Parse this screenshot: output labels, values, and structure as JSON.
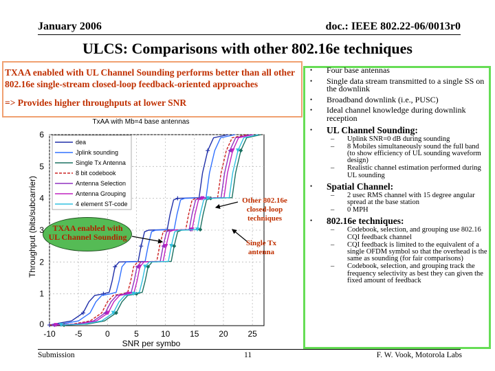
{
  "header": {
    "date": "January 2006",
    "doc": "doc.: IEEE 802.22-06/0013r0"
  },
  "title": "ULCS: Comparisons with other 802.16e techniques",
  "summary": {
    "line1": "TXAA enabled with UL Channel Sounding performs better than all other 802.16e single-stream closed-loop feedback-oriented approaches",
    "line2": "=> Provides higher throughputs at lower SNR"
  },
  "bullets": [
    {
      "text": "Four base antennas"
    },
    {
      "text": "Single data stream transmitted to a single SS on the downlink"
    },
    {
      "text": "Broadband downlink (i.e., PUSC)"
    },
    {
      "text": "Ideal channel knowledge during downlink reception"
    },
    {
      "text": "UL Channel Sounding:",
      "subs": [
        "Uplink SNR=0 dB during sounding",
        "8 Mobiles simultaneously sound the full band (to show efficiency of UL sounding waveform design)",
        "Realistic channel estimation performed during UL sounding"
      ]
    },
    {
      "text": "Spatial Channel:",
      "subs": [
        "2 usec RMS channel with 15 degree angular spread at the base station",
        "0 MPH"
      ]
    },
    {
      "text": "802.16e techniques:",
      "subs": [
        "Codebook, selection, and grouping use 802.16 CQI feedback channel",
        "CQI feedback is limited to the equivalent of a single OFDM symbol so that the overhead is the same as sounding (for fair comparisons)",
        "Codebook, selection, and grouping track the frequency selectivity as best they can given the fixed amount of feedback"
      ]
    }
  ],
  "annotations": {
    "ellipse": "TXAA enabled with UL Channel Sounding",
    "other": "Other 802.16e closed-loop techniques",
    "single": "Single Tx antenna"
  },
  "footer": {
    "left": "Submission",
    "page": "11",
    "right": "F. W. Vook, Motorola Labs"
  },
  "colors": {
    "title_accent": "#c03000",
    "box_border": "#66dd55",
    "ellipse_fill": "#55bb55"
  },
  "chart_data": {
    "type": "line",
    "title": "TxAA with Mb=4 base antennas",
    "xlabel": "SNR per symbo",
    "ylabel": "Throughput (bits/subcarrier)",
    "xlim": [
      -10,
      27
    ],
    "ylim": [
      0,
      6
    ],
    "xticks": [
      -10,
      -5,
      0,
      5,
      10,
      15,
      20,
      25
    ],
    "yticks": [
      1,
      2,
      3,
      4,
      5,
      6
    ],
    "legend": [
      "dea",
      "Jplink sounding",
      "Single Tx Antenna",
      "8 bit codebook",
      "Antenna Selection",
      "Antenna Grouping",
      "4 element ST-code"
    ],
    "legend_position": "top-left",
    "grid": true,
    "series": [
      {
        "name": "dea",
        "color": "#1f2fa8",
        "dash": "",
        "marker": "plus",
        "offset": -3.2
      },
      {
        "name": "Jplink sounding",
        "color": "#3070ff",
        "dash": "",
        "marker": "none",
        "offset": -2.0
      },
      {
        "name": "Single Tx Antenna",
        "color": "#1a7060",
        "dash": "",
        "marker": "diamond",
        "offset": 2.5
      },
      {
        "name": "8 bit codebook",
        "color": "#cc2020",
        "dash": "4 2",
        "marker": "none",
        "offset": 0.0
      },
      {
        "name": "Antenna Selection",
        "color": "#9030c0",
        "dash": "",
        "marker": "triangle-left",
        "offset": 0.6
      },
      {
        "name": "Antenna Grouping",
        "color": "#c020c0",
        "dash": "",
        "marker": "triangle-down",
        "offset": 1.1
      },
      {
        "name": "4 element ST-code",
        "color": "#30c0e0",
        "dash": "",
        "marker": "triangle-down",
        "offset": 2.0
      }
    ]
  }
}
